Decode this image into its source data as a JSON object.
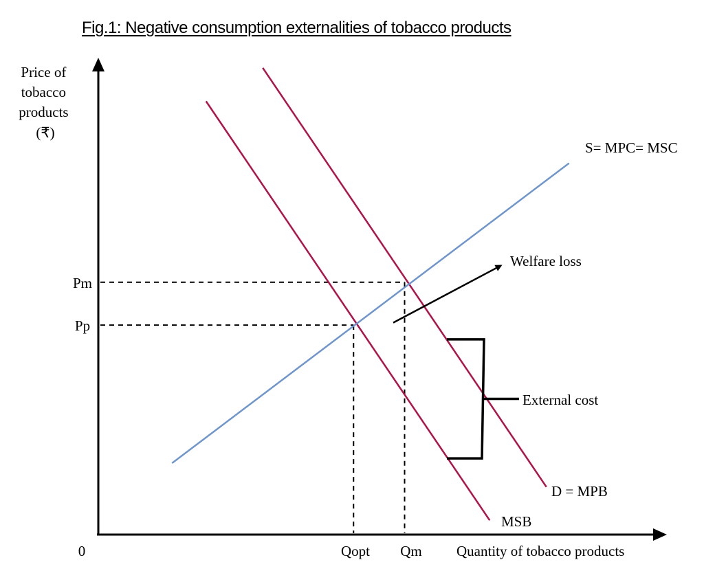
{
  "title": "Fig.1: Negative consumption externalities of tobacco products",
  "colors": {
    "demand_curves": "#b0124a",
    "supply_curve": "#6f96cc",
    "axes": "#000000"
  },
  "chart_data": {
    "type": "line",
    "title": "Fig.1: Negative consumption externalities of tobacco products",
    "ylabel_lines": [
      "Price of",
      "tobacco",
      "products",
      "(₹)"
    ],
    "xlabel": "Quantity of tobacco products",
    "origin_label": "0",
    "xlim": [
      0,
      100
    ],
    "ylim": [
      0,
      100
    ],
    "grid": false,
    "series": [
      {
        "name": "MSB",
        "label": "MSB",
        "color": "#b0124a",
        "points": [
          [
            19,
            91
          ],
          [
            69,
            3
          ]
        ]
      },
      {
        "name": "D = MPB",
        "label": "D = MPB",
        "color": "#b0124a",
        "points": [
          [
            29,
            98
          ],
          [
            79,
            10
          ]
        ]
      },
      {
        "name": "S= MPC= MSC",
        "label": "S= MPC= MSC",
        "color": "#6f96cc",
        "points": [
          [
            13,
            15
          ],
          [
            83,
            78
          ]
        ]
      }
    ],
    "reference_levels": {
      "prices": [
        {
          "label": "Pm",
          "value": 53
        },
        {
          "label": "Pp",
          "value": 44
        }
      ],
      "quantities": [
        {
          "label": "Qopt",
          "value": 45
        },
        {
          "label": "Qm",
          "value": 54
        }
      ]
    },
    "annotations": [
      {
        "text": "Welfare loss",
        "type": "arrow",
        "from": [
          52,
          44.5
        ],
        "to": [
          71,
          56.5
        ]
      },
      {
        "text": "External cost",
        "type": "bracket",
        "y_range": [
          16,
          41
        ],
        "x": 68
      }
    ]
  }
}
